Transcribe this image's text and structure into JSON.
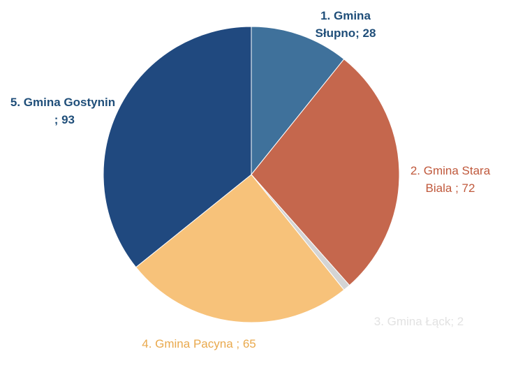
{
  "chart_data": {
    "type": "pie",
    "categories": [
      "1. Gmina Słupno",
      "2. Gmina Stara Biala",
      "3. Gmina Łąck",
      "4. Gmina Pacyna",
      "5. Gmina Gostynin"
    ],
    "values": [
      28,
      72,
      2,
      65,
      93
    ],
    "value_labels": [
      "; 28",
      " ; 72",
      "; 2",
      " ; 65",
      " ; 93"
    ],
    "colors": [
      "#3f719b",
      "#c5674d",
      "#d4d4d4",
      "#f7c27a",
      "#20497f"
    ],
    "label_colors": [
      "#1f4e79",
      "#c0593c",
      "#e2e2e2",
      "#e9a94d",
      "#1f4e79"
    ]
  }
}
